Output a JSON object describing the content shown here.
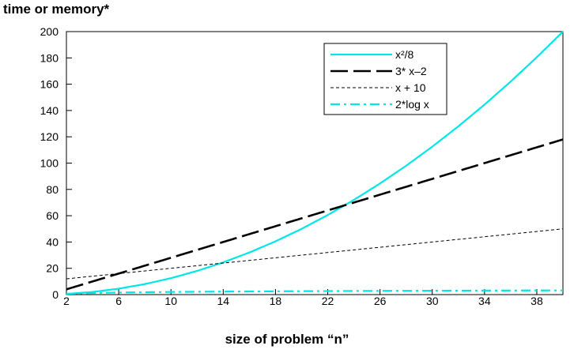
{
  "chart_data": {
    "type": "line",
    "title": "",
    "ylabel": "time or memory*",
    "xlabel": "size of problem “n”",
    "xlim": [
      2,
      40
    ],
    "ylim": [
      0,
      200
    ],
    "xticks": [
      2,
      6,
      10,
      14,
      18,
      22,
      26,
      30,
      34,
      38
    ],
    "yticks": [
      0,
      20,
      40,
      60,
      80,
      100,
      120,
      140,
      160,
      180,
      200
    ],
    "grid": false,
    "legend_position": "top-right",
    "x": [
      2,
      4,
      6,
      8,
      10,
      12,
      14,
      16,
      18,
      20,
      22,
      24,
      26,
      28,
      30,
      32,
      34,
      36,
      38,
      40
    ],
    "series": [
      {
        "name": "x²/8",
        "color": "#00e5e5",
        "style": "solid",
        "values": [
          0.5,
          2,
          4.5,
          8,
          12.5,
          18,
          24.5,
          32,
          40.5,
          50,
          60.5,
          72,
          84.5,
          98,
          112.5,
          128,
          144.5,
          162,
          180.5,
          200
        ]
      },
      {
        "name": "3* x–2",
        "color": "#000000",
        "style": "long-dash",
        "values": [
          4,
          10,
          16,
          22,
          28,
          34,
          40,
          46,
          52,
          58,
          64,
          70,
          76,
          82,
          88,
          94,
          100,
          106,
          112,
          118
        ]
      },
      {
        "name": "x + 10",
        "color": "#000000",
        "style": "short-dash",
        "values": [
          12,
          14,
          16,
          18,
          20,
          22,
          24,
          26,
          28,
          30,
          32,
          34,
          36,
          38,
          40,
          42,
          44,
          46,
          48,
          50
        ]
      },
      {
        "name": "2*log x",
        "color": "#00e5e5",
        "style": "dash-dot",
        "values": [
          0.6,
          1.2,
          1.56,
          1.81,
          2,
          2.16,
          2.29,
          2.41,
          2.51,
          2.6,
          2.68,
          2.76,
          2.83,
          2.89,
          2.95,
          3.01,
          3.06,
          3.11,
          3.16,
          3.2
        ]
      }
    ]
  }
}
